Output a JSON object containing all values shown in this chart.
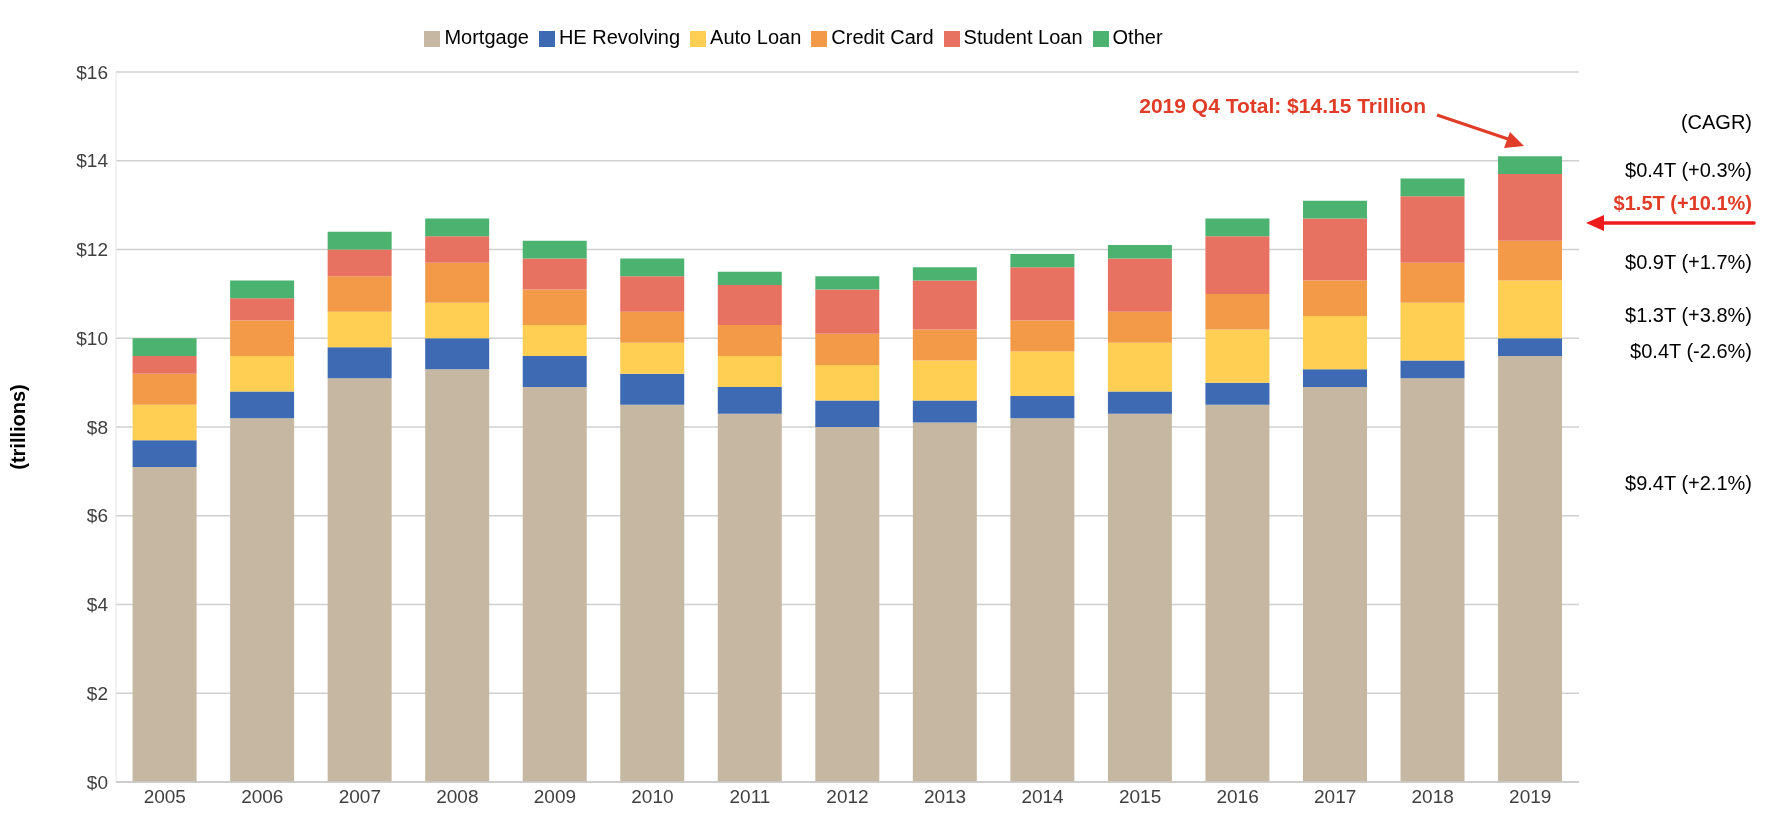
{
  "chart_data": {
    "type": "bar",
    "stacked": true,
    "ylabel": "(trillions)",
    "categories": [
      "2005",
      "2006",
      "2007",
      "2008",
      "2009",
      "2010",
      "2011",
      "2012",
      "2013",
      "2014",
      "2015",
      "2016",
      "2017",
      "2018",
      "2019"
    ],
    "series": [
      {
        "name": "Mortgage",
        "color": "#c6b7a2",
        "values": [
          7.1,
          8.2,
          9.1,
          9.3,
          8.9,
          8.5,
          8.3,
          8.0,
          8.1,
          8.2,
          8.3,
          8.5,
          8.9,
          9.1,
          9.6
        ]
      },
      {
        "name": "HE Revolving",
        "color": "#3d6ab3",
        "values": [
          0.6,
          0.6,
          0.7,
          0.7,
          0.7,
          0.7,
          0.6,
          0.6,
          0.5,
          0.5,
          0.5,
          0.5,
          0.4,
          0.4,
          0.4
        ]
      },
      {
        "name": "Auto Loan",
        "color": "#fecf52",
        "values": [
          0.8,
          0.8,
          0.8,
          0.8,
          0.7,
          0.7,
          0.7,
          0.8,
          0.9,
          1.0,
          1.1,
          1.2,
          1.2,
          1.3,
          1.3
        ]
      },
      {
        "name": "Credit Card",
        "color": "#f29a47",
        "values": [
          0.7,
          0.8,
          0.8,
          0.9,
          0.8,
          0.7,
          0.7,
          0.7,
          0.7,
          0.7,
          0.7,
          0.8,
          0.8,
          0.9,
          0.9
        ]
      },
      {
        "name": "Student Loan",
        "color": "#e87262",
        "values": [
          0.4,
          0.5,
          0.6,
          0.6,
          0.7,
          0.8,
          0.9,
          1.0,
          1.1,
          1.2,
          1.2,
          1.3,
          1.4,
          1.5,
          1.5
        ]
      },
      {
        "name": "Other",
        "color": "#4bb36f",
        "values": [
          0.4,
          0.4,
          0.4,
          0.4,
          0.4,
          0.4,
          0.3,
          0.3,
          0.3,
          0.3,
          0.3,
          0.4,
          0.4,
          0.4,
          0.4
        ]
      }
    ],
    "ylim": [
      0,
      16
    ],
    "yticks": [
      {
        "value": 0,
        "label": "$0"
      },
      {
        "value": 2,
        "label": "$2"
      },
      {
        "value": 4,
        "label": "$4"
      },
      {
        "value": 6,
        "label": "$6"
      },
      {
        "value": 8,
        "label": "$8"
      },
      {
        "value": 10,
        "label": "$10"
      },
      {
        "value": 12,
        "label": "$12"
      },
      {
        "value": 14,
        "label": "$14"
      },
      {
        "value": 16,
        "label": "$16"
      }
    ],
    "grid": "y",
    "legend": "top",
    "annotations": [
      "2019 Q4 Total: $14.15 Trillion",
      "(CAGR)",
      "$0.4T (+0.3%)",
      "$1.5T (+10.1%)",
      "$0.9T (+1.7%)",
      "$1.3T (+3.8%)",
      "$0.4T (-2.6%)",
      "$9.4T (+2.1%)"
    ]
  }
}
